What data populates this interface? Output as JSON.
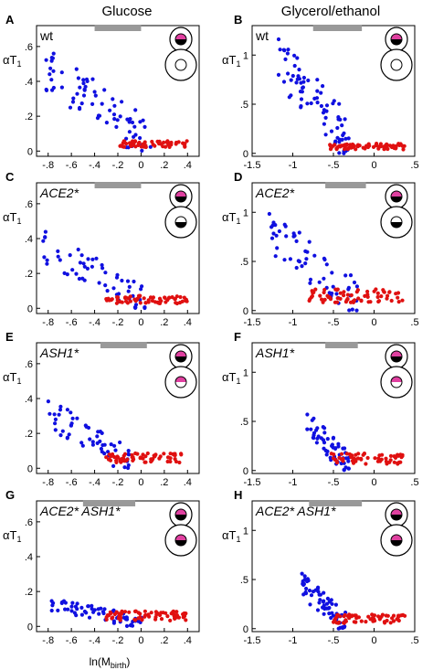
{
  "columns": [
    "Glucose",
    "Glycerol/ethanol"
  ],
  "xlabel": "ln(M",
  "xlabel_sub": "birth",
  "xlabel_close": ")",
  "ylabel": "αT",
  "ylabel_sub": "1",
  "colors": {
    "mother": "#1010e0",
    "daughter": "#e01010",
    "bar": "#999999"
  },
  "chart_data": [
    {
      "letter": "A",
      "strain": "wt",
      "type": "scatter",
      "xlim": [
        -0.9,
        0.5
      ],
      "ylim": [
        -0.03,
        0.72
      ],
      "xticks": [
        -0.8,
        -0.6,
        -0.4,
        -0.2,
        0,
        0.2,
        0.4
      ],
      "yticks": [
        0,
        0.2,
        0.4,
        0.6
      ],
      "bar": [
        -0.4,
        0
      ],
      "cells": {
        "bud": "pink-black",
        "mother": "open"
      },
      "seed": 11,
      "series": [
        {
          "group": "mother",
          "n": 72,
          "xr": [
            -0.85,
            0.1
          ],
          "y0": 0.48,
          "k": -1.0
        },
        {
          "group": "daughter",
          "n": 62,
          "xr": [
            -0.2,
            0.4
          ],
          "y0": 0.04,
          "k": 0
        }
      ]
    },
    {
      "letter": "B",
      "strain": "wt",
      "type": "scatter",
      "xlim": [
        -1.5,
        0.5
      ],
      "ylim": [
        -0.03,
        1.3
      ],
      "xticks": [
        -1.5,
        -1,
        -0.5,
        0,
        0.5
      ],
      "yticks": [
        0,
        0.5,
        1
      ],
      "bar": [
        -0.75,
        -0.15
      ],
      "cells": {
        "bud": "pink-black",
        "mother": "open"
      },
      "seed": 23,
      "series": [
        {
          "group": "mother",
          "n": 75,
          "xr": [
            -1.2,
            -0.3
          ],
          "y0": 1.0,
          "k": -1.0
        },
        {
          "group": "daughter",
          "n": 80,
          "xr": [
            -0.55,
            0.4
          ],
          "y0": 0.07,
          "k": 0
        }
      ]
    },
    {
      "letter": "C",
      "strain": "ACE2*",
      "type": "scatter",
      "xlim": [
        -0.9,
        0.5
      ],
      "ylim": [
        -0.03,
        0.72
      ],
      "xticks": [
        -0.8,
        -0.6,
        -0.4,
        -0.2,
        0,
        0.2,
        0.4
      ],
      "yticks": [
        0,
        0.2,
        0.4,
        0.6
      ],
      "bar": [
        -0.4,
        0
      ],
      "cells": {
        "bud": "pink-black",
        "mother": "black"
      },
      "seed": 31,
      "series": [
        {
          "group": "mother",
          "n": 58,
          "xr": [
            -0.85,
            0.05
          ],
          "y0": 0.36,
          "k": -0.8
        },
        {
          "group": "daughter",
          "n": 65,
          "xr": [
            -0.3,
            0.4
          ],
          "y0": 0.05,
          "k": 0
        }
      ]
    },
    {
      "letter": "D",
      "strain": "ACE2*",
      "type": "scatter",
      "xlim": [
        -1.5,
        0.5
      ],
      "ylim": [
        -0.03,
        1.3
      ],
      "xticks": [
        -1.5,
        -1,
        -0.5,
        0,
        0.5
      ],
      "yticks": [
        0,
        0.5,
        1
      ],
      "bar": [
        -0.6,
        -0.1
      ],
      "cells": {
        "bud": "pink-black",
        "mother": "black"
      },
      "seed": 43,
      "series": [
        {
          "group": "mother",
          "n": 60,
          "xr": [
            -1.3,
            -0.2
          ],
          "y0": 0.85,
          "k": -0.8
        },
        {
          "group": "daughter",
          "n": 70,
          "xr": [
            -0.8,
            0.4
          ],
          "y0": 0.15,
          "k": 0
        }
      ]
    },
    {
      "letter": "E",
      "strain": "ASH1*",
      "type": "scatter",
      "xlim": [
        -0.9,
        0.5
      ],
      "ylim": [
        -0.03,
        0.72
      ],
      "xticks": [
        -0.8,
        -0.6,
        -0.4,
        -0.2,
        0,
        0.2,
        0.4
      ],
      "yticks": [
        0,
        0.2,
        0.4,
        0.6
      ],
      "bar": [
        -0.35,
        0.05
      ],
      "cells": {
        "bud": "pink-black",
        "mother": "pink"
      },
      "seed": 57,
      "series": [
        {
          "group": "mother",
          "n": 55,
          "xr": [
            -0.8,
            -0.1
          ],
          "y0": 0.32,
          "k": -0.9
        },
        {
          "group": "daughter",
          "n": 70,
          "xr": [
            -0.35,
            0.35
          ],
          "y0": 0.06,
          "k": 0
        }
      ]
    },
    {
      "letter": "F",
      "strain": "ASH1*",
      "type": "scatter",
      "xlim": [
        -1.5,
        0.5
      ],
      "ylim": [
        -0.03,
        1.3
      ],
      "xticks": [
        -1.5,
        -1,
        -0.5,
        0,
        0.5
      ],
      "yticks": [
        0,
        0.5,
        1
      ],
      "bar": [
        -0.6,
        -0.2
      ],
      "cells": {
        "bud": "pink-black",
        "mother": "pink"
      },
      "seed": 61,
      "series": [
        {
          "group": "mother",
          "n": 55,
          "xr": [
            -0.85,
            -0.3
          ],
          "y0": 0.5,
          "k": -1.0
        },
        {
          "group": "daughter",
          "n": 60,
          "xr": [
            -0.55,
            0.35
          ],
          "y0": 0.12,
          "k": 0
        }
      ]
    },
    {
      "letter": "G",
      "strain": "ACE2* ASH1*",
      "type": "scatter",
      "xlim": [
        -0.9,
        0.5
      ],
      "ylim": [
        -0.03,
        0.72
      ],
      "xticks": [
        -0.8,
        -0.6,
        -0.4,
        -0.2,
        0,
        0.2,
        0.4
      ],
      "yticks": [
        0,
        0.2,
        0.4,
        0.6
      ],
      "bar": [
        -0.5,
        -0.05
      ],
      "cells": {
        "bud": "pink-black",
        "mother": "pink-black"
      },
      "seed": 73,
      "series": [
        {
          "group": "mother",
          "n": 60,
          "xr": [
            -0.85,
            0.05
          ],
          "y0": 0.14,
          "k": -0.6
        },
        {
          "group": "daughter",
          "n": 70,
          "xr": [
            -0.3,
            0.4
          ],
          "y0": 0.06,
          "k": 0
        }
      ]
    },
    {
      "letter": "H",
      "strain": "ACE2* ASH1*",
      "type": "scatter",
      "xlim": [
        -1.5,
        0.5
      ],
      "ylim": [
        -0.03,
        1.3
      ],
      "xticks": [
        -1.5,
        -1,
        -0.5,
        0,
        0.5
      ],
      "yticks": [
        0,
        0.5,
        1
      ],
      "bar": [
        -0.8,
        -0.15
      ],
      "cells": {
        "bud": "pink-black",
        "mother": "pink-black"
      },
      "seed": 89,
      "series": [
        {
          "group": "mother",
          "n": 65,
          "xr": [
            -0.9,
            -0.35
          ],
          "y0": 0.45,
          "k": -0.8
        },
        {
          "group": "daughter",
          "n": 60,
          "xr": [
            -0.5,
            0.4
          ],
          "y0": 0.1,
          "k": 0
        }
      ]
    }
  ]
}
